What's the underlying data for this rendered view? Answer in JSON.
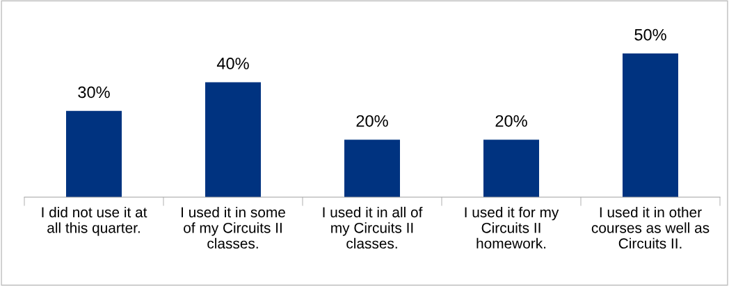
{
  "chart_data": {
    "type": "bar",
    "categories": [
      "I did not use it at\nall this quarter.",
      "I used it in some\nof my Circuits II\nclasses.",
      "I used it in all of\nmy Circuits II\nclasses.",
      "I used it for my\nCircuits II\nhomework.",
      "I used it in other\ncourses as well as\nCircuits II."
    ],
    "values": [
      30,
      40,
      20,
      20,
      50
    ],
    "value_labels": [
      "30%",
      "40%",
      "20%",
      "20%",
      "50%"
    ],
    "color": "#003380",
    "grid": false,
    "legend": false
  }
}
